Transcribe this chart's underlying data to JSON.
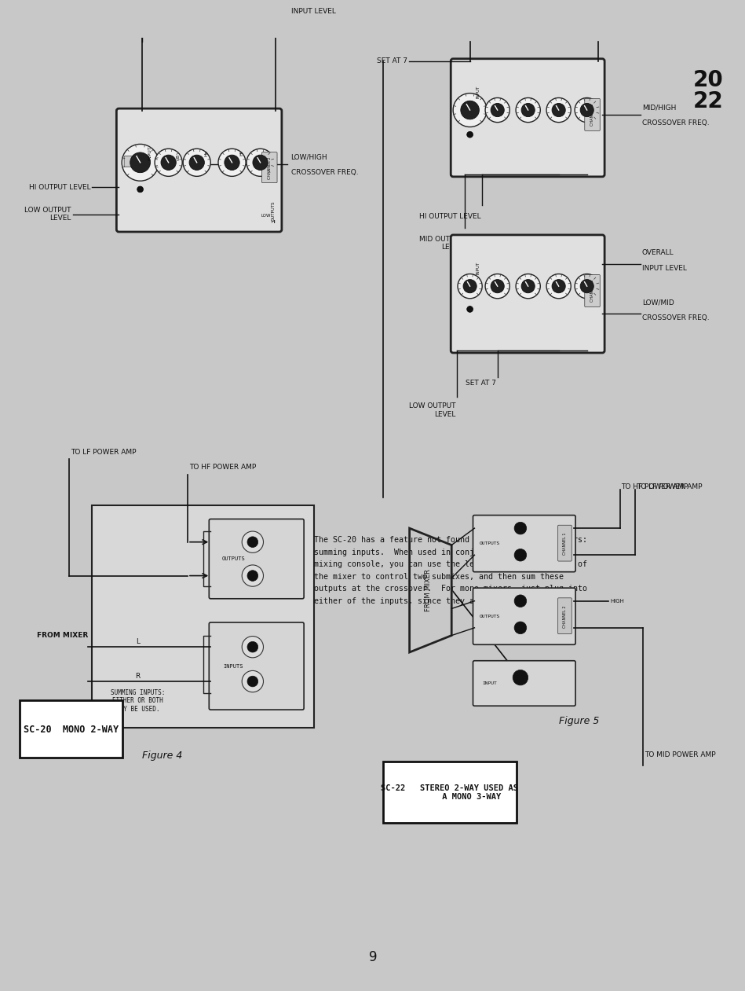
{
  "bg_color": "#c8c8c8",
  "text_color": "#111111",
  "panel_color": "#e8e8e8",
  "panel_border": "#111111",
  "page_number": "9",
  "fig4_label": "Figure 4",
  "fig5_label": "Figure 5",
  "sc20_label": "SC-20  MONO 2-WAY",
  "sc22_label": "SC-22   STEREO 2-WAY USED AS\n         A MONO 3-WAY",
  "body_text_lines": [
    "The SC-20 has a feature not found on our other crossovers:",
    "summing inputs.  When used in conjunction with a stereo",
    "mixing console, you can use the left and right channels of",
    "the mixer to control two submixes, and then sum these",
    "outputs at the crossover.  For mono mixers, just plug into",
    "either of the inputs, since they are identical."
  ],
  "top_right_numbers": [
    "20",
    "22"
  ]
}
